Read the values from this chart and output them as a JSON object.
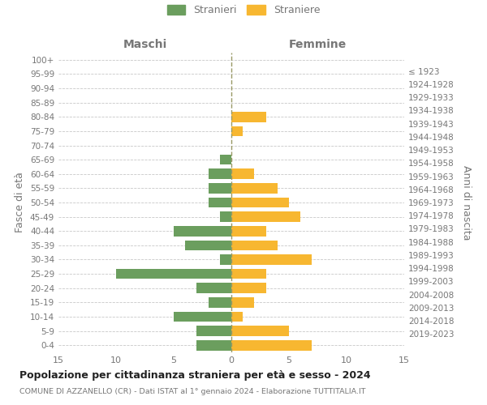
{
  "age_groups": [
    "0-4",
    "5-9",
    "10-14",
    "15-19",
    "20-24",
    "25-29",
    "30-34",
    "35-39",
    "40-44",
    "45-49",
    "50-54",
    "55-59",
    "60-64",
    "65-69",
    "70-74",
    "75-79",
    "80-84",
    "85-89",
    "90-94",
    "95-99",
    "100+"
  ],
  "birth_years": [
    "2019-2023",
    "2014-2018",
    "2009-2013",
    "2004-2008",
    "1999-2003",
    "1994-1998",
    "1989-1993",
    "1984-1988",
    "1979-1983",
    "1974-1978",
    "1969-1973",
    "1964-1968",
    "1959-1963",
    "1954-1958",
    "1949-1953",
    "1944-1948",
    "1939-1943",
    "1934-1938",
    "1929-1933",
    "1924-1928",
    "≤ 1923"
  ],
  "males": [
    3,
    3,
    5,
    2,
    3,
    10,
    1,
    4,
    5,
    1,
    2,
    2,
    2,
    1,
    0,
    0,
    0,
    0,
    0,
    0,
    0
  ],
  "females": [
    7,
    5,
    1,
    2,
    3,
    3,
    7,
    4,
    3,
    6,
    5,
    4,
    2,
    0,
    0,
    1,
    3,
    0,
    0,
    0,
    0
  ],
  "male_color": "#6b9e5e",
  "female_color": "#f7b731",
  "male_label": "Stranieri",
  "female_label": "Straniere",
  "title": "Popolazione per cittadinanza straniera per età e sesso - 2024",
  "subtitle": "COMUNE DI AZZANELLO (CR) - Dati ISTAT al 1° gennaio 2024 - Elaborazione TUTTITALIA.IT",
  "xlabel_left": "Maschi",
  "xlabel_right": "Femmine",
  "ylabel_left": "Fasce di età",
  "ylabel_right": "Anni di nascita",
  "xlim": 15,
  "background_color": "#ffffff",
  "grid_color": "#c8c8c8",
  "label_color": "#777777",
  "vline_color": "#999966"
}
